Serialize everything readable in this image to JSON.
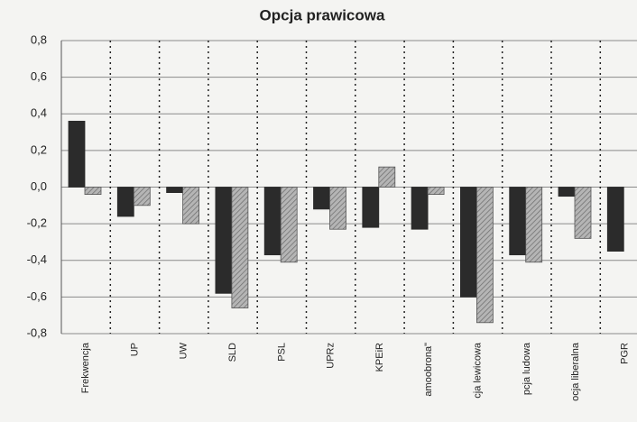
{
  "chart_data": {
    "type": "bar",
    "title": "Opcja prawicowa",
    "categories": [
      "Frekwencja",
      "UP",
      "UW",
      "SLD",
      "PSL",
      "UPRz",
      "KPEiR",
      "amoobrona\"",
      "cja lewicowa",
      "pcja ludowa",
      "ocja liberalna",
      "PGR"
    ],
    "series": [
      {
        "color": "#2b2b2b",
        "values": [
          0.36,
          -0.16,
          -0.03,
          -0.58,
          -0.37,
          -0.12,
          -0.22,
          -0.23,
          -0.6,
          -0.37,
          -0.05,
          -0.35
        ]
      },
      {
        "color": "#9c9c9c",
        "values": [
          -0.04,
          -0.1,
          -0.2,
          -0.66,
          -0.41,
          -0.23,
          0.11,
          -0.04,
          -0.74,
          -0.41,
          -0.28,
          null
        ]
      }
    ],
    "ylim": [
      -0.8,
      0.8
    ],
    "yticks": [
      {
        "value": 0.8,
        "label": "0,8"
      },
      {
        "value": 0.6,
        "label": "0,6"
      },
      {
        "value": 0.4,
        "label": "0,4"
      },
      {
        "value": 0.2,
        "label": "0,2"
      },
      {
        "value": 0,
        "label": "0,0"
      },
      {
        "value": -0.2,
        "label": "-0,2"
      },
      {
        "value": -0.4,
        "label": "-0,4"
      },
      {
        "value": -0.6,
        "label": "-0,6"
      },
      {
        "value": -0.8,
        "label": "-0,8"
      }
    ],
    "grid": true
  }
}
